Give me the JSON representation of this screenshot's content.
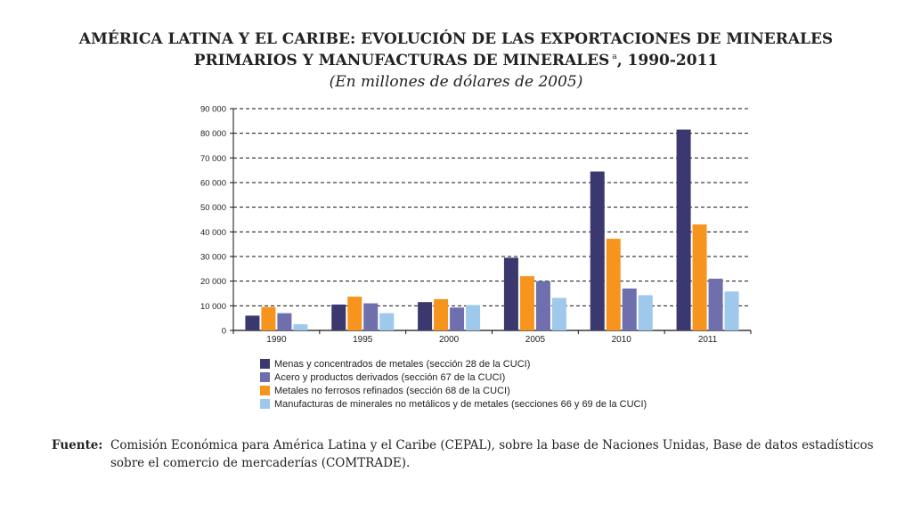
{
  "title": {
    "line1": "AMÉRICA LATINA Y EL CARIBE: EVOLUCIÓN DE LAS EXPORTACIONES DE MINERALES",
    "line2_main": "PRIMARIOS Y MANUFACTURAS DE MINERALES",
    "line2_sup": "a",
    "line2_tail": ", 1990-2011",
    "subtitle": "(En millones de dólares de 2005)"
  },
  "chart_data": {
    "type": "bar",
    "title": "AMÉRICA LATINA Y EL CARIBE: EVOLUCIÓN DE LAS EXPORTACIONES DE MINERALES PRIMARIOS Y MANUFACTURAS DE MINERALES, 1990-2011",
    "subtitle": "(En millones de dólares de 2005)",
    "categories": [
      "1990",
      "1995",
      "2000",
      "2005",
      "2010",
      "2011"
    ],
    "yticks": [
      0,
      10000,
      20000,
      30000,
      40000,
      50000,
      60000,
      70000,
      80000,
      90000
    ],
    "ytick_labels": [
      "0",
      "10 000",
      "20 000",
      "30 000",
      "40 000",
      "50 000",
      "60 000",
      "70 000",
      "80 000",
      "90 000"
    ],
    "ylim": [
      0,
      90000
    ],
    "grid": "horizontal dashed",
    "legend_position": "bottom",
    "series": [
      {
        "name": "Menas y concentrados de metales (sección 28 de la CUCI)",
        "color": "#3b3870",
        "values": [
          6000,
          10500,
          11500,
          29500,
          64500,
          81500
        ]
      },
      {
        "name": "Metales no ferrosos refinados (sección 68 de la CUCI)",
        "color": "#f7941d",
        "values": [
          9500,
          13700,
          12700,
          22000,
          37200,
          43000
        ]
      },
      {
        "name": "Acero y productos derivados (sección 67 de la CUCI)",
        "color": "#6f6fae",
        "values": [
          7000,
          11000,
          9300,
          20000,
          17000,
          21000
        ]
      },
      {
        "name": "Manufacturas de minerales no metálicos y de metales (secciones 66 y 69 de la CUCI)",
        "color": "#9ec8ec",
        "values": [
          2500,
          7000,
          10300,
          13200,
          14300,
          15800
        ]
      }
    ],
    "legend_order": [
      0,
      2,
      1,
      3
    ]
  },
  "source": {
    "label": "Fuente:",
    "text": "Comisión Económica para América Latina y el Caribe (CEPAL), sobre la base de Naciones Unidas, Base de datos estadísticos sobre el comercio de mercaderías (COMTRADE)."
  }
}
